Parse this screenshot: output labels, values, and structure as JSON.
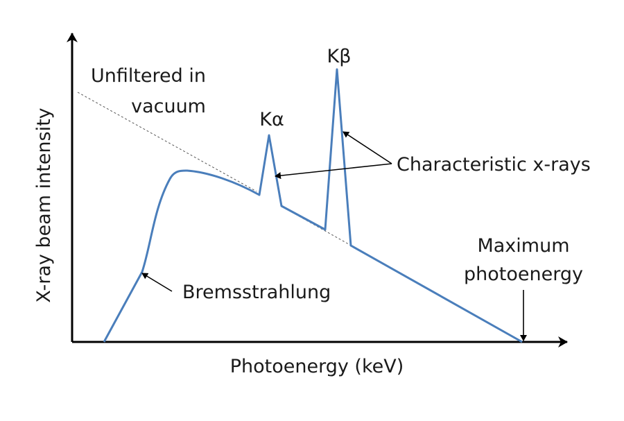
{
  "diagram": {
    "axes": {
      "x_label": "Photoenergy (keV)",
      "y_label": "X-ray beam intensity"
    },
    "annotations": {
      "unfiltered_line1": "Unfiltered in",
      "unfiltered_line2": "vacuum",
      "k_alpha": "Kα",
      "k_beta": "Kβ",
      "characteristic": "Characteristic x-rays",
      "bremsstrahlung": "Bremsstrahlung",
      "maximum_line1": "Maximum",
      "maximum_line2": "photoenergy"
    },
    "colors": {
      "spectrum": "#4a7ebb",
      "axis": "#000000",
      "dashed": "#555555",
      "text": "#1a1a1a"
    }
  }
}
